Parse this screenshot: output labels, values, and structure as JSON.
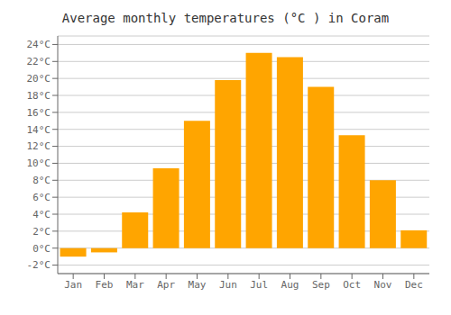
{
  "chart_data": {
    "type": "bar",
    "title": "Average monthly temperatures (°C ) in Coram",
    "categories": [
      "Jan",
      "Feb",
      "Mar",
      "Apr",
      "May",
      "Jun",
      "Jul",
      "Aug",
      "Sep",
      "Oct",
      "Nov",
      "Dec"
    ],
    "values": [
      -1.0,
      -0.5,
      4.2,
      9.4,
      15.0,
      19.8,
      23.0,
      22.5,
      19.0,
      13.3,
      8.0,
      2.1
    ],
    "color": "#FFA500",
    "ylim": [
      -3,
      25
    ],
    "yticks": [
      {
        "value": -2,
        "label": "-2°C"
      },
      {
        "value": 0,
        "label": "0°C"
      },
      {
        "value": 2,
        "label": "2°C"
      },
      {
        "value": 4,
        "label": "4°C"
      },
      {
        "value": 6,
        "label": "6°C"
      },
      {
        "value": 8,
        "label": "8°C"
      },
      {
        "value": 10,
        "label": "10°C"
      },
      {
        "value": 12,
        "label": "12°C"
      },
      {
        "value": 14,
        "label": "14°C"
      },
      {
        "value": 16,
        "label": "16°C"
      },
      {
        "value": 18,
        "label": "18°C"
      },
      {
        "value": 20,
        "label": "20°C"
      },
      {
        "value": 22,
        "label": "22°C"
      },
      {
        "value": 24,
        "label": "24°C"
      }
    ],
    "grid": true
  }
}
